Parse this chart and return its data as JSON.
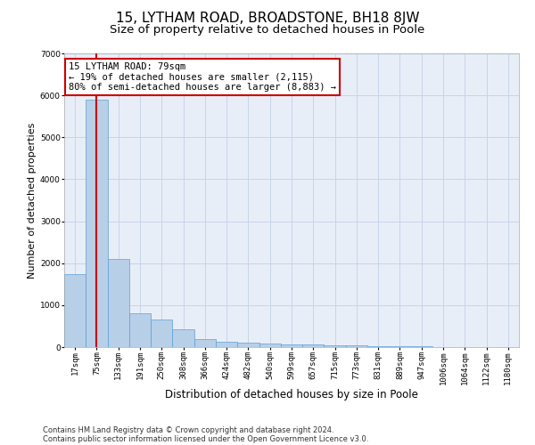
{
  "title": "15, LYTHAM ROAD, BROADSTONE, BH18 8JW",
  "subtitle": "Size of property relative to detached houses in Poole",
  "xlabel": "Distribution of detached houses by size in Poole",
  "ylabel": "Number of detached properties",
  "categories": [
    "17sqm",
    "75sqm",
    "133sqm",
    "191sqm",
    "250sqm",
    "308sqm",
    "366sqm",
    "424sqm",
    "482sqm",
    "540sqm",
    "599sqm",
    "657sqm",
    "715sqm",
    "773sqm",
    "831sqm",
    "889sqm",
    "947sqm",
    "1006sqm",
    "1064sqm",
    "1122sqm",
    "1180sqm"
  ],
  "values": [
    1750,
    5900,
    2100,
    800,
    650,
    420,
    200,
    130,
    100,
    80,
    65,
    60,
    50,
    40,
    30,
    20,
    15,
    10,
    8,
    5,
    3
  ],
  "bar_color": "#b8cfe8",
  "bar_edgecolor": "#5a9fd4",
  "vline_x": 1,
  "vline_color": "#cc0000",
  "annotation_text": "15 LYTHAM ROAD: 79sqm\n← 19% of detached houses are smaller (2,115)\n80% of semi-detached houses are larger (8,883) →",
  "annotation_box_color": "#ffffff",
  "annotation_box_edgecolor": "#cc0000",
  "ylim": [
    0,
    7000
  ],
  "yticks": [
    0,
    1000,
    2000,
    3000,
    4000,
    5000,
    6000,
    7000
  ],
  "background_color": "#ffffff",
  "plot_bg_color": "#e8eef8",
  "grid_color": "#c8d4e8",
  "footer_line1": "Contains HM Land Registry data © Crown copyright and database right 2024.",
  "footer_line2": "Contains public sector information licensed under the Open Government Licence v3.0.",
  "title_fontsize": 11,
  "subtitle_fontsize": 9.5,
  "xlabel_fontsize": 8.5,
  "ylabel_fontsize": 8,
  "tick_fontsize": 6.5,
  "annotation_fontsize": 7.5,
  "footer_fontsize": 6
}
